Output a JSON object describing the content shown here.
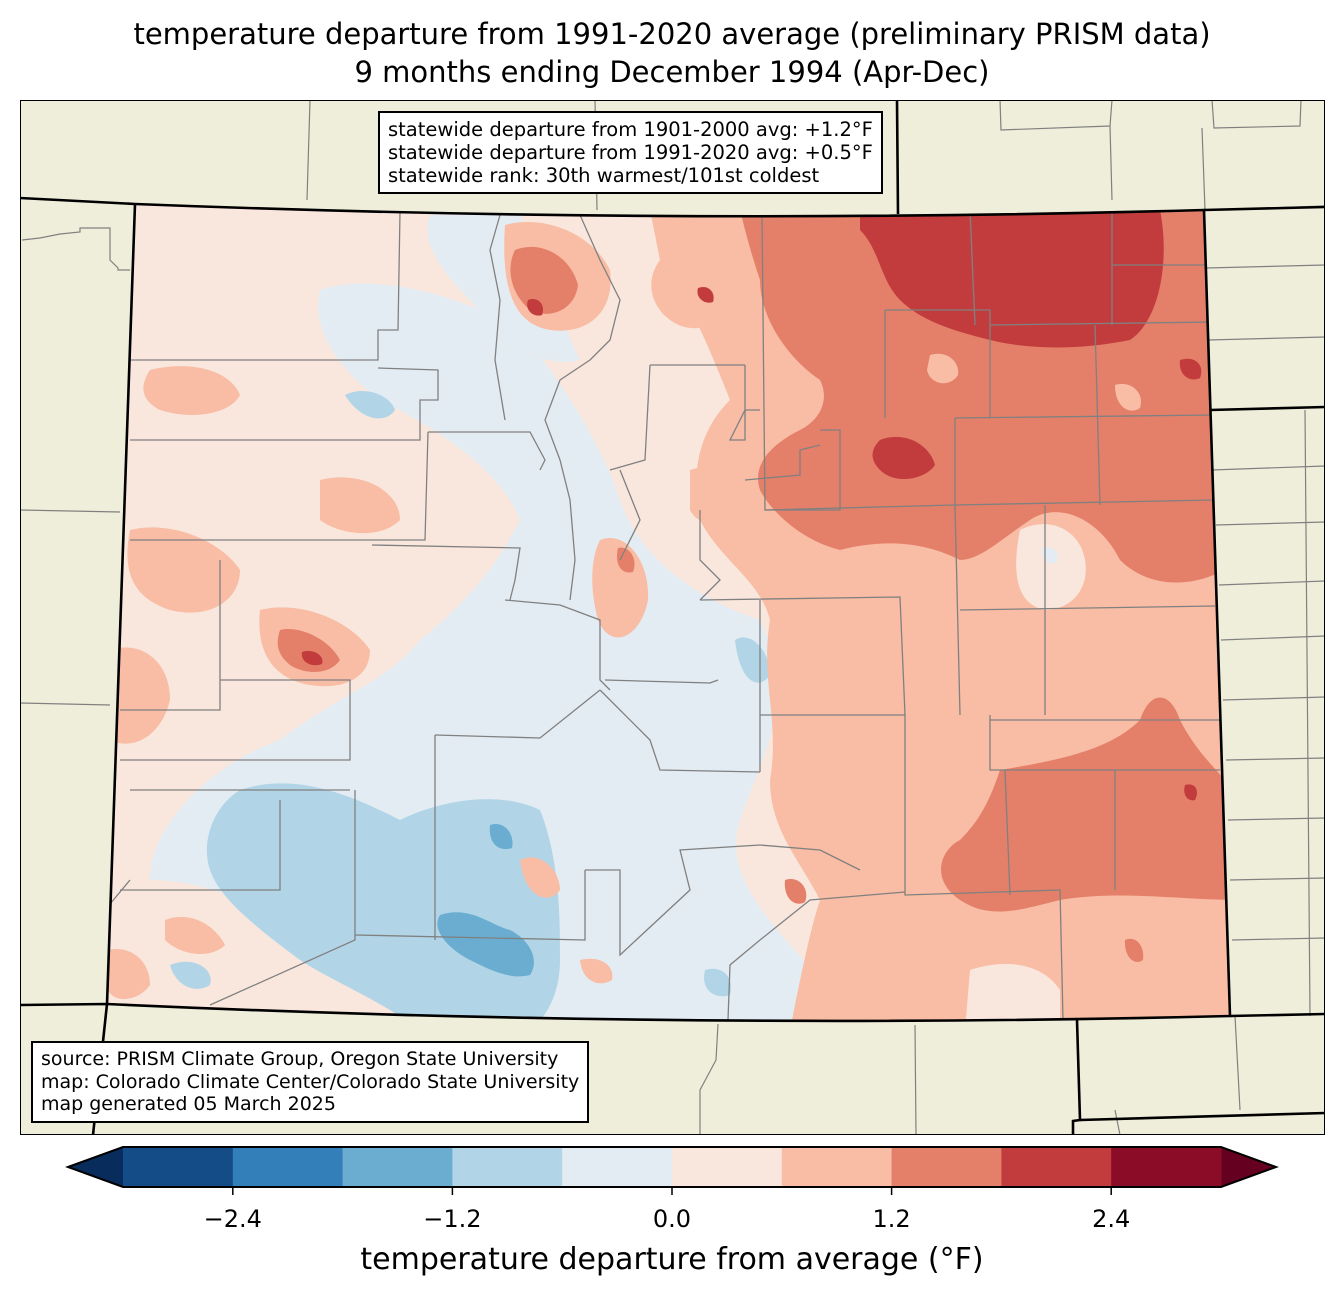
{
  "title": {
    "line1": "temperature departure from 1991-2020 average (preliminary PRISM data)",
    "line2": "9 months ending December 1994 (Apr-Dec)"
  },
  "stats_box": {
    "line1": "statewide departure from 1901-2000 avg: +1.2°F",
    "line2": "statewide departure from 1991-2020 avg: +0.5°F",
    "line3": "statewide rank: 30th warmest/101st coldest"
  },
  "source_box": {
    "line1": "source: PRISM Climate Group, Oregon State University",
    "line2": "map: Colorado Climate Center/Colorado State University",
    "line3": "map generated 05 March 2025"
  },
  "colorbar": {
    "label": "temperature departure from average (°F)",
    "ticks": [
      "−2.4",
      "−1.2",
      "0.0",
      "1.2",
      "2.4"
    ],
    "tick_values": [
      -2.4,
      -1.2,
      0.0,
      1.2,
      2.4
    ],
    "bounds": [
      -3.0,
      3.0
    ],
    "step": 0.6,
    "colors": [
      "#144c87",
      "#327fba",
      "#6aadd1",
      "#b1d5e7",
      "#e4ecf3",
      "#f9e7de",
      "#f8bda4",
      "#e4806a",
      "#c33c3d",
      "#8a0c27"
    ],
    "under_color": "#082c5c",
    "over_color": "#650021"
  },
  "map_colors": {
    "land": "#efeedb",
    "county_line": "#808080",
    "state_line": "#000000"
  },
  "chart_data": {
    "type": "heatmap",
    "title": "temperature departure from 1991-2020 average (preliminary PRISM data) — 9 months ending December 1994 (Apr-Dec)",
    "region": "Colorado",
    "units": "°F",
    "statewide_departure_1901_2000": 1.2,
    "statewide_departure_1991_2020": 0.5,
    "statewide_rank_warmest": 30,
    "statewide_rank_coldest": 101,
    "levels": [
      -3.0,
      -2.4,
      -1.8,
      -1.2,
      -0.6,
      0.0,
      0.6,
      1.2,
      1.8,
      2.4,
      3.0
    ],
    "pattern": {
      "northeast": "1.8 to 2.4",
      "east_central": "1.2 to 1.8",
      "southeast": "0.6 to 1.8",
      "west": "0.0 to 0.6",
      "central_mountains": "-0.6 to 0.0",
      "san_juan_south": "-1.8 to -0.6"
    }
  }
}
